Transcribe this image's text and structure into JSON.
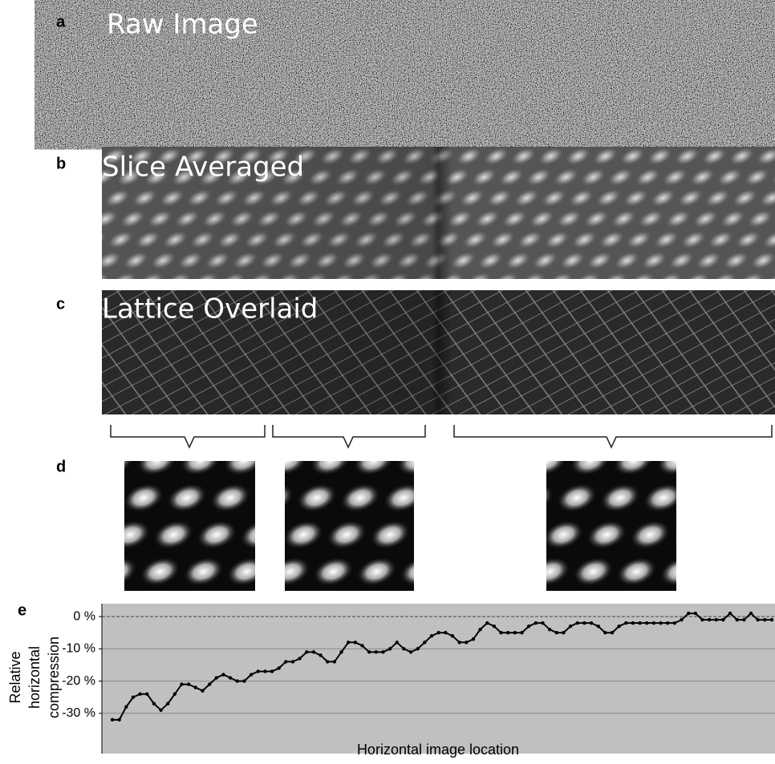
{
  "panels": [
    {
      "label": "a",
      "title": "Raw Image"
    },
    {
      "label": "b",
      "title": "Slice Averaged"
    },
    {
      "label": "c",
      "title": "Lattice Overlaid"
    },
    {
      "label": "d"
    },
    {
      "label": "e"
    }
  ],
  "chart_data": {
    "type": "line",
    "ylabel": [
      "Relative",
      "horizontal",
      "compression"
    ],
    "xlabel": "Horizontal image location",
    "values": [
      -32,
      -32,
      -28,
      -25,
      -24,
      -24,
      -27,
      -29,
      -27,
      -24,
      -21,
      -21,
      -22,
      -23,
      -21,
      -19,
      -18,
      -19,
      -20,
      -20,
      -18,
      -17,
      -17,
      -17,
      -16,
      -14,
      -14,
      -13,
      -11,
      -11,
      -12,
      -14,
      -14,
      -11,
      -8,
      -8,
      -9,
      -11,
      -11,
      -11,
      -10,
      -8,
      -10,
      -11,
      -10,
      -8,
      -6,
      -5,
      -5,
      -6,
      -8,
      -8,
      -7,
      -4,
      -2,
      -3,
      -5,
      -5,
      -5,
      -5,
      -3,
      -2,
      -2,
      -4,
      -5,
      -5,
      -3,
      -2,
      -2,
      -2,
      -3,
      -5,
      -5,
      -3,
      -2,
      -2,
      -2,
      -2,
      -2,
      -2,
      -2,
      -2,
      -1,
      1,
      1,
      -1,
      -1,
      -1,
      -1,
      1,
      -1,
      -1,
      1,
      -1,
      -1,
      -1
    ],
    "color": "#000000",
    "ylim": [
      -38,
      4
    ],
    "yticks": [
      {
        "value": 0,
        "label": "0 %"
      },
      {
        "value": -10,
        "label": "-10 %"
      },
      {
        "value": -20,
        "label": "-20 %"
      },
      {
        "value": -30,
        "label": "-30 %"
      }
    ],
    "grid": true
  }
}
